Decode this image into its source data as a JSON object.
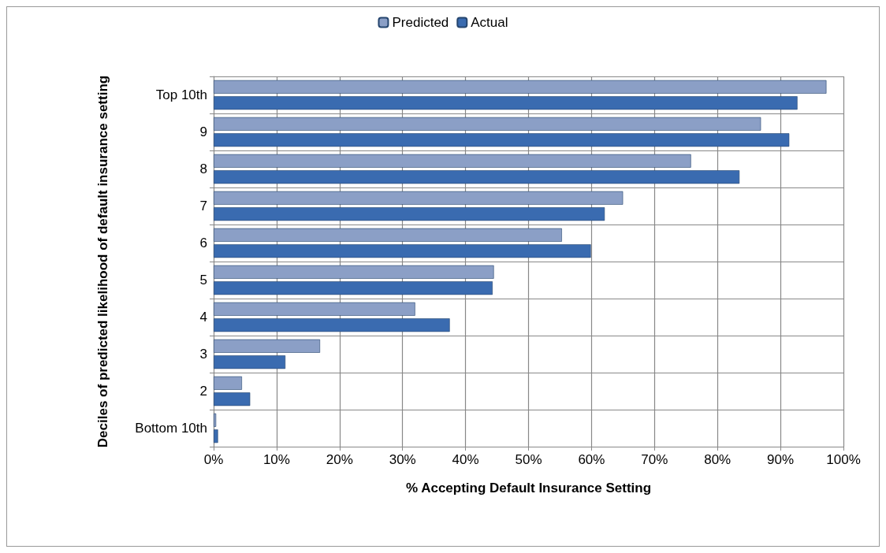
{
  "chart_data": {
    "type": "bar",
    "orientation": "horizontal",
    "xlabel": "% Accepting Default Insurance Setting",
    "ylabel": "Deciles of predicted likelihood of default insurance setting",
    "categories": [
      "Top 10th",
      "9",
      "8",
      "7",
      "6",
      "5",
      "4",
      "3",
      "2",
      "Bottom 10th"
    ],
    "series": [
      {
        "name": "Predicted",
        "color": "#8b9fc6",
        "values": [
          97.3,
          86.9,
          75.8,
          65.0,
          55.3,
          44.5,
          32.0,
          16.9,
          4.5,
          0.4
        ]
      },
      {
        "name": "Actual",
        "color": "#3a6bb0",
        "values": [
          92.7,
          91.4,
          83.5,
          62.1,
          59.9,
          44.3,
          37.5,
          11.4,
          5.8,
          0.7
        ]
      }
    ],
    "xlim": [
      0,
      100
    ],
    "xticks": [
      {
        "value": 0,
        "label": "0%"
      },
      {
        "value": 10,
        "label": "10%"
      },
      {
        "value": 20,
        "label": "20%"
      },
      {
        "value": 30,
        "label": "30%"
      },
      {
        "value": 40,
        "label": "40%"
      },
      {
        "value": 50,
        "label": "50%"
      },
      {
        "value": 60,
        "label": "60%"
      },
      {
        "value": 70,
        "label": "70%"
      },
      {
        "value": 80,
        "label": "80%"
      },
      {
        "value": 90,
        "label": "90%"
      },
      {
        "value": 100,
        "label": "100%"
      }
    ],
    "grid": true,
    "legend": "top"
  }
}
